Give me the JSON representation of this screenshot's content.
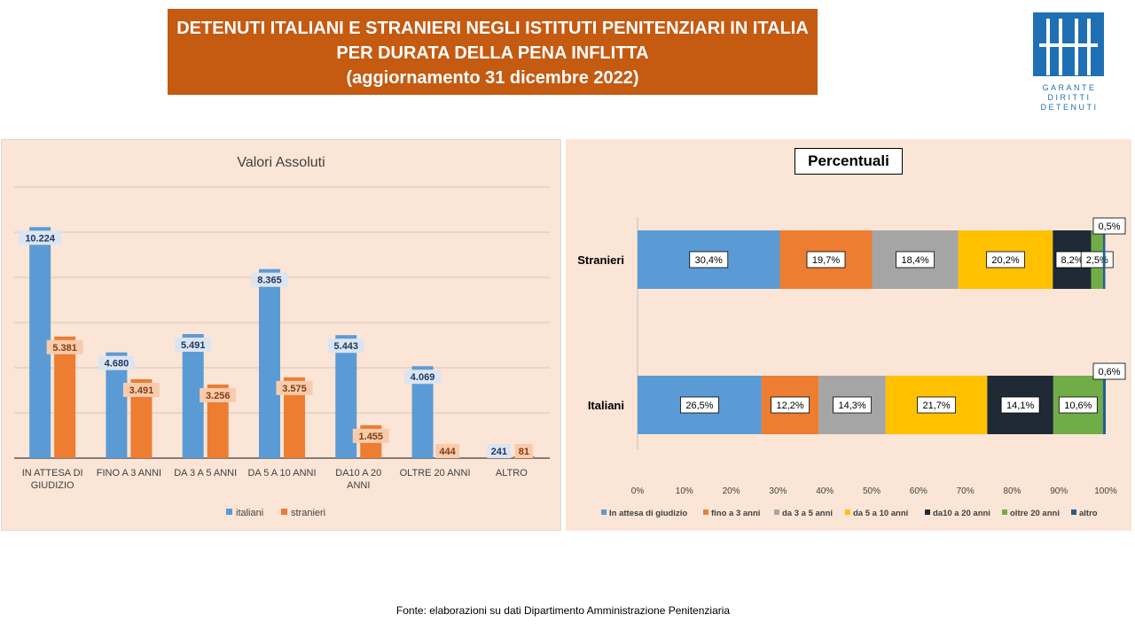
{
  "header": {
    "title_lines": [
      "DETENUTI ITALIANI E STRANIERI NEGLI ISTITUTI PENITENZIARI IN ITALIA",
      "PER DURATA DELLA PENA INFLITTA",
      "(aggiornamento 31 dicembre 2022)"
    ]
  },
  "logo": {
    "lines": [
      "GARANTE",
      "DIRITTI",
      "DETENUTI"
    ],
    "color": "#1f6fb4"
  },
  "footer": {
    "source": "Fonte:  elaborazioni su dati Dipartimento  Amministrazione  Penitenziaria"
  },
  "colors": {
    "italiani": "#5b9bd5",
    "stranieri": "#ed7d31",
    "segments": [
      "#5b9bd5",
      "#ed7d31",
      "#a5a5a5",
      "#ffc000",
      "#1f2a36",
      "#70ad47",
      "#255e91"
    ]
  },
  "chart_data": [
    {
      "type": "bar",
      "title": "Valori  Assoluti",
      "categories": [
        [
          "IN ATTESA  DI",
          "GIUDIZIO"
        ],
        [
          "FINO A  3 ANNI"
        ],
        [
          "DA 3 A 5 ANNI"
        ],
        [
          "DA 5 A 10 ANNI"
        ],
        [
          "DA10  A 20",
          "ANNI"
        ],
        [
          "OLTRE 20 ANNI"
        ],
        [
          "ALTRO"
        ]
      ],
      "series": [
        {
          "name": "italiani",
          "values": [
            10224,
            4680,
            5491,
            8365,
            5443,
            4069,
            241
          ],
          "labels": [
            "10.224",
            "4.680",
            "5.491",
            "8.365",
            "5.443",
            "4.069",
            "241"
          ]
        },
        {
          "name": "stranieri",
          "values": [
            5381,
            3491,
            3256,
            3575,
            1455,
            444,
            81
          ],
          "labels": [
            "5.381",
            "3.491",
            "3.256",
            "3.575",
            "1.455",
            "444",
            "81"
          ]
        }
      ],
      "ylim": [
        0,
        12000
      ],
      "grid": true,
      "legend": "bottom"
    },
    {
      "type": "bar",
      "orientation": "horizontal",
      "stacked": "percent",
      "title": "Percentuali",
      "categories": [
        "Stranieri",
        "Italiani"
      ],
      "series": [
        {
          "name": "In attesa di giudizio",
          "values": [
            30.4,
            26.5
          ]
        },
        {
          "name": "fino a 3 anni",
          "values": [
            19.7,
            12.2
          ]
        },
        {
          "name": "da 3 a 5 anni",
          "values": [
            18.4,
            14.3
          ]
        },
        {
          "name": "da 5 a 10 anni",
          "values": [
            20.2,
            21.7
          ]
        },
        {
          "name": "da10  a 20 anni",
          "values": [
            8.2,
            14.1
          ]
        },
        {
          "name": "oltre 20 anni",
          "values": [
            2.5,
            10.6
          ]
        },
        {
          "name": "altro",
          "values": [
            0.5,
            0.6
          ]
        }
      ],
      "data_labels": [
        [
          "30,4%",
          "19,7%",
          "18,4%",
          "20,2%",
          "8,2%",
          "2,5%",
          "0,5%"
        ],
        [
          "26,5%",
          "12,2%",
          "14,3%",
          "21,7%",
          "14,1%",
          "10,6%",
          "0,6%"
        ]
      ],
      "xticks": [
        "0%",
        "10%",
        "20%",
        "30%",
        "40%",
        "50%",
        "60%",
        "70%",
        "80%",
        "90%",
        "100%"
      ],
      "xlim": [
        0,
        100
      ],
      "legend": "bottom"
    }
  ]
}
